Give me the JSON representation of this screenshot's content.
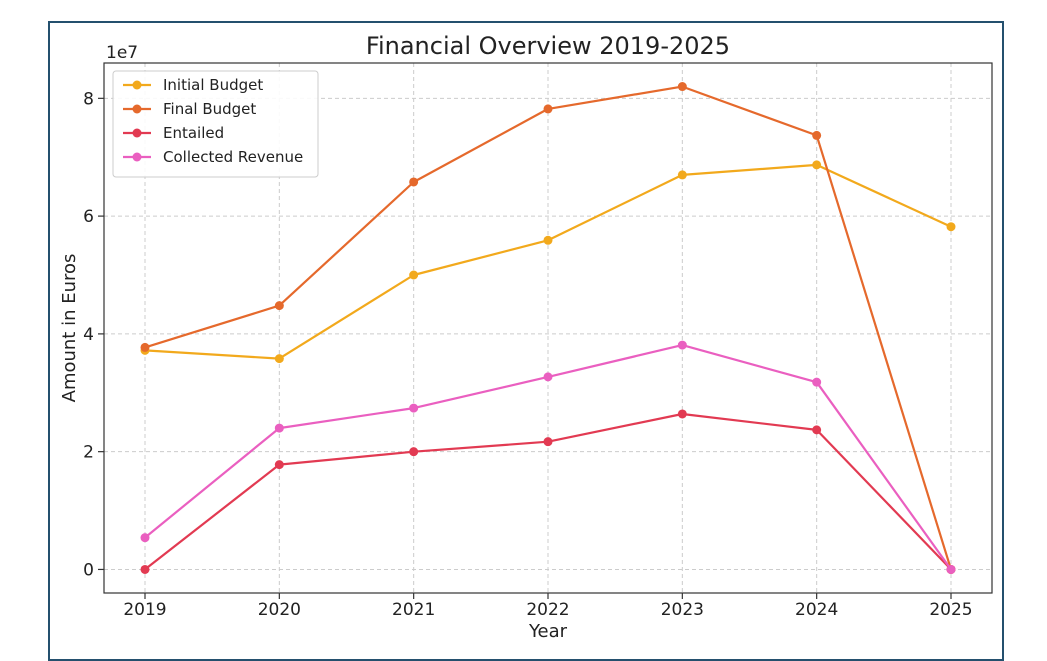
{
  "chart_data": {
    "type": "line",
    "title": "Financial Overview 2019-2025",
    "xlabel": "Year",
    "ylabel": "Amount in Euros",
    "y_scale_label": "1e7",
    "categories": [
      "2019",
      "2020",
      "2021",
      "2022",
      "2023",
      "2024",
      "2025"
    ],
    "ylim": [
      -4000000,
      86000000
    ],
    "yticks": [
      0,
      20000000,
      40000000,
      60000000,
      80000000
    ],
    "ytick_labels": [
      "0",
      "2",
      "4",
      "6",
      "8"
    ],
    "grid": true,
    "legend_position": "top-left",
    "series": [
      {
        "name": "Initial Budget",
        "color": "#f2a91c",
        "values": [
          37200000,
          35800000,
          50000000,
          55900000,
          67000000,
          68700000,
          58200000
        ]
      },
      {
        "name": "Final Budget",
        "color": "#e5692c",
        "values": [
          37700000,
          44800000,
          65800000,
          78200000,
          82000000,
          73700000,
          0
        ]
      },
      {
        "name": "Entailed",
        "color": "#e23a52",
        "values": [
          0,
          17800000,
          20000000,
          21700000,
          26400000,
          23700000,
          0
        ]
      },
      {
        "name": "Collected Revenue",
        "color": "#ea5fc0",
        "values": [
          5400000,
          24000000,
          27400000,
          32700000,
          38100000,
          31800000,
          0
        ]
      }
    ]
  }
}
